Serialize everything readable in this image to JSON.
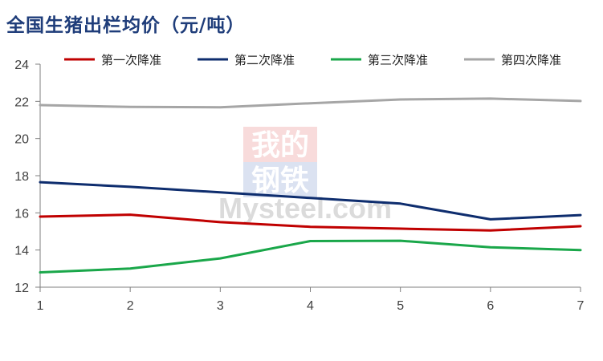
{
  "chart_data": {
    "type": "line",
    "title": "全国生猪出栏均价（元/吨）",
    "xlabel": "",
    "ylabel": "",
    "x": [
      1,
      2,
      3,
      4,
      5,
      6,
      7
    ],
    "xlim": [
      1,
      7
    ],
    "ylim": [
      12,
      24
    ],
    "yticks": [
      12,
      14,
      16,
      18,
      20,
      22,
      24
    ],
    "grid": false,
    "legend_position": "top",
    "series": [
      {
        "name": "第一次降准",
        "color": "#c00000",
        "values": [
          15.8,
          15.9,
          15.5,
          15.25,
          15.15,
          15.05,
          15.28
        ]
      },
      {
        "name": "第二次降准",
        "color": "#0e2d6e",
        "values": [
          17.65,
          17.4,
          17.1,
          16.8,
          16.5,
          15.65,
          15.88
        ]
      },
      {
        "name": "第三次降准",
        "color": "#1aa74a",
        "values": [
          12.8,
          13.0,
          13.55,
          14.48,
          14.5,
          14.15,
          14.0
        ]
      },
      {
        "name": "第四次降准",
        "color": "#a6a6a6",
        "values": [
          21.8,
          21.7,
          21.68,
          21.9,
          22.1,
          22.15,
          22.02
        ]
      }
    ]
  },
  "watermark": {
    "line1": "我的",
    "line2": "钢铁",
    "brand": "Mysteel.com"
  }
}
